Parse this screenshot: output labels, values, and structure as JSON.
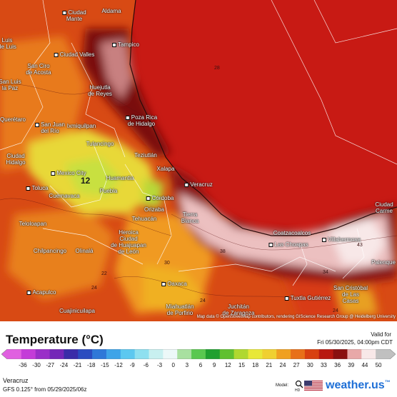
{
  "map": {
    "cities": [
      {
        "name": "Ciudad\nMante"
      },
      {
        "name": "Aldama"
      },
      {
        "name": "Luis\nde Luis"
      },
      {
        "name": "Tampico"
      },
      {
        "name": "Ciudad Valles"
      },
      {
        "name": "San Ciro\nde Acosta"
      },
      {
        "name": "San Luis\nla Paz"
      },
      {
        "name": "Huejutla\nde Reyes"
      },
      {
        "name": "Poza Rica\nde Hidalgo"
      },
      {
        "name": "Querétaro"
      },
      {
        "name": "San Juan\ndel Río"
      },
      {
        "name": "Ixmiquilpan"
      },
      {
        "name": "Tulancingo"
      },
      {
        "name": "Teziutlán"
      },
      {
        "name": "Ciudad\nHidalgo"
      },
      {
        "name": "Mexico City"
      },
      {
        "name": "Huamantla"
      },
      {
        "name": "Xalapa"
      },
      {
        "name": "Veracruz"
      },
      {
        "name": "Toluca"
      },
      {
        "name": "Cuernavaca"
      },
      {
        "name": "Puebla"
      },
      {
        "name": "Córdoba"
      },
      {
        "name": "Orizaba"
      },
      {
        "name": "Tierra\nBlanca"
      },
      {
        "name": "Ciudad\nCarme"
      },
      {
        "name": "Tehuacán"
      },
      {
        "name": "Coatzacoalcos"
      },
      {
        "name": "Teloloapan"
      },
      {
        "name": "Heroica\nCiudad\nde Huajuapan\nde León"
      },
      {
        "name": "Las Choapas"
      },
      {
        "name": "Villahermosa"
      },
      {
        "name": "Chilpancingo"
      },
      {
        "name": "Olinalá"
      },
      {
        "name": "Palenque"
      },
      {
        "name": "Acapulco"
      },
      {
        "name": "Oaxaca"
      },
      {
        "name": "San Cristóbal\nde Las\nCasas"
      },
      {
        "name": "Cuajinicuilapa"
      },
      {
        "name": "Miahuatlán\nde Porfirio"
      },
      {
        "name": "Juchitán\nde Zaragoza"
      },
      {
        "name": "Tuxtla Gutiérrez"
      }
    ],
    "temp_labels": [
      {
        "v": "28"
      },
      {
        "v": "12",
        "big": true
      },
      {
        "v": "38"
      },
      {
        "v": "43"
      },
      {
        "v": "24"
      },
      {
        "v": "34"
      },
      {
        "v": "30"
      },
      {
        "v": "24"
      },
      {
        "v": "22"
      },
      {
        "v": "24"
      }
    ],
    "attribution": "Map data © OpenStreetMap contributors, rendering GIScience Research Group @ Heidelberg University"
  },
  "legend": {
    "title": "Temperature (°C)",
    "valid_label": "Valid for",
    "valid_time": "Fri 05/30/2025, 04:00pm CDT",
    "ticks": [
      "-36",
      "-30",
      "-27",
      "-24",
      "-21",
      "-18",
      "-15",
      "-12",
      "-9",
      "-6",
      "-3",
      "0",
      "3",
      "6",
      "9",
      "12",
      "15",
      "18",
      "21",
      "24",
      "27",
      "30",
      "33",
      "36",
      "39",
      "44",
      "50"
    ],
    "colors": [
      "#e060e0",
      "#c43cd8",
      "#9a2ec8",
      "#7426b8",
      "#3a2ca8",
      "#2a4cc0",
      "#2e78d8",
      "#3ea4e8",
      "#5cc8f0",
      "#8ee0f0",
      "#c8f0f0",
      "#ecf8f8",
      "#a8e0a0",
      "#5ac850",
      "#20a030",
      "#60c030",
      "#b0d830",
      "#e8e838",
      "#f0d030",
      "#f0a020",
      "#e87018",
      "#d84010",
      "#b81810",
      "#8a1010",
      "#e8a8a8",
      "#f8e8e8",
      "#c0c0c0"
    ]
  },
  "footer": {
    "region": "Veracruz",
    "run_info": "GFS 0.125° from  05/29/2025/06z",
    "model_label": "Model:",
    "hd_label": "HD",
    "brand": "weather.us",
    "brand_suffix": "™"
  }
}
